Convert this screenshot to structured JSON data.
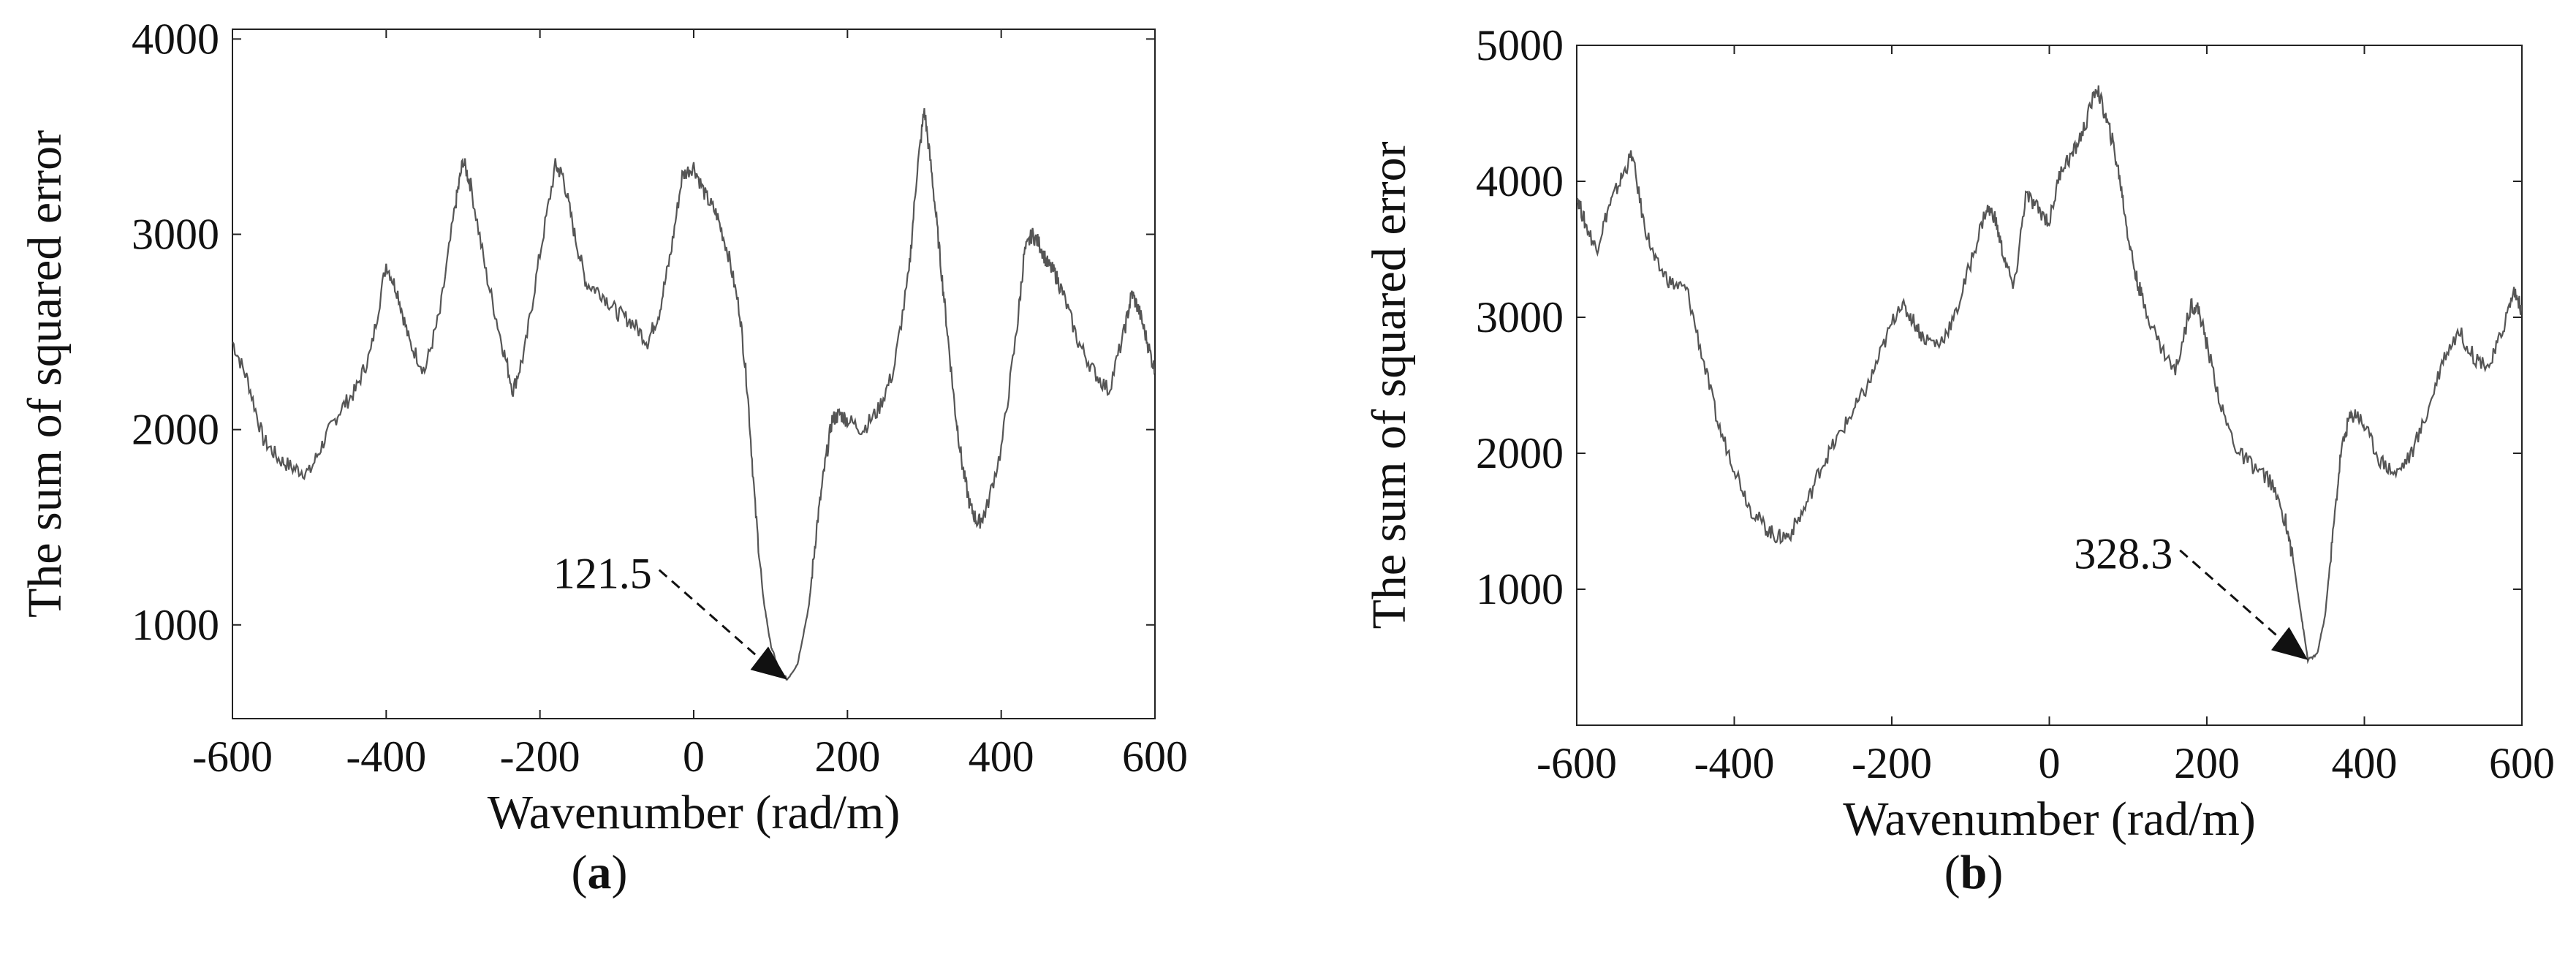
{
  "chart_data": [
    {
      "type": "line",
      "panel_label": {
        "open": "(",
        "letter": "a",
        "close": ")"
      },
      "xlabel": "Wavenumber (rad/m)",
      "ylabel": "The sum of squared error",
      "xlim": [
        -600,
        600
      ],
      "ylim": [
        520,
        4050
      ],
      "xticks": [
        -600,
        -400,
        -200,
        0,
        200,
        400,
        600
      ],
      "yticks": [
        1000,
        2000,
        3000,
        4000
      ],
      "grid": false,
      "line_color": "#555555",
      "annotation": {
        "text": "121.5",
        "x": 121.5,
        "y": 720
      },
      "x": [
        -600,
        -580,
        -560,
        -540,
        -520,
        -500,
        -480,
        -460,
        -440,
        -420,
        -400,
        -385,
        -370,
        -350,
        -330,
        -310,
        -300,
        -290,
        -270,
        -250,
        -235,
        -220,
        -200,
        -180,
        -170,
        -155,
        -140,
        -120,
        -100,
        -80,
        -60,
        -45,
        -30,
        -15,
        0,
        15,
        30,
        45,
        60,
        70,
        80,
        90,
        100,
        110,
        121.5,
        135,
        150,
        160,
        170,
        180,
        190,
        200,
        220,
        240,
        260,
        280,
        290,
        300,
        310,
        320,
        330,
        340,
        350,
        360,
        370,
        380,
        400,
        420,
        430,
        440,
        450,
        460,
        470,
        480,
        500,
        520,
        540,
        560,
        570,
        580,
        590,
        600
      ],
      "y": [
        2450,
        2250,
        1950,
        1850,
        1800,
        1780,
        1950,
        2100,
        2200,
        2400,
        2850,
        2700,
        2450,
        2300,
        2600,
        3150,
        3380,
        3250,
        2800,
        2450,
        2200,
        2400,
        2900,
        3350,
        3300,
        3000,
        2750,
        2700,
        2600,
        2550,
        2450,
        2600,
        2900,
        3300,
        3350,
        3200,
        3100,
        2900,
        2600,
        2200,
        1600,
        1150,
        900,
        780,
        720,
        800,
        1100,
        1500,
        1800,
        2050,
        2080,
        2050,
        2000,
        2100,
        2300,
        2800,
        3300,
        3640,
        3300,
        2900,
        2500,
        2100,
        1800,
        1600,
        1520,
        1580,
        1900,
        2500,
        2900,
        3000,
        2950,
        2850,
        2800,
        2700,
        2450,
        2300,
        2200,
        2500,
        2700,
        2600,
        2450,
        2300
      ]
    },
    {
      "type": "line",
      "panel_label": {
        "open": "(",
        "letter": "b",
        "close": ")"
      },
      "xlabel": "Wavenumber (rad/m)",
      "ylabel": "The sum of squared error",
      "xlim": [
        -600,
        600
      ],
      "ylim": [
        0,
        5000
      ],
      "xticks": [
        -600,
        -400,
        -200,
        0,
        200,
        400,
        600
      ],
      "yticks": [
        1000,
        2000,
        3000,
        4000,
        5000
      ],
      "grid": false,
      "line_color": "#555555",
      "annotation": {
        "text": "328.3",
        "x": 328.3,
        "y": 480
      },
      "x": [
        -600,
        -590,
        -575,
        -560,
        -545,
        -530,
        -515,
        -500,
        -480,
        -460,
        -440,
        -420,
        -400,
        -380,
        -360,
        -345,
        -330,
        -310,
        -290,
        -270,
        -250,
        -230,
        -210,
        -190,
        -175,
        -160,
        -140,
        -120,
        -100,
        -80,
        -70,
        -60,
        -45,
        -30,
        -15,
        0,
        15,
        30,
        45,
        60,
        70,
        80,
        90,
        100,
        110,
        120,
        140,
        160,
        180,
        190,
        200,
        220,
        240,
        260,
        280,
        300,
        310,
        320,
        328.3,
        340,
        350,
        360,
        370,
        380,
        390,
        400,
        420,
        440,
        460,
        480,
        500,
        520,
        540,
        560,
        575,
        590,
        600
      ],
      "y": [
        3900,
        3700,
        3500,
        3800,
        4000,
        4200,
        3700,
        3400,
        3250,
        3200,
        2700,
        2200,
        1900,
        1600,
        1450,
        1380,
        1400,
        1600,
        1900,
        2100,
        2300,
        2500,
        2800,
        3100,
        3000,
        2850,
        2800,
        3000,
        3400,
        3800,
        3750,
        3500,
        3200,
        3900,
        3800,
        3700,
        4100,
        4200,
        4400,
        4700,
        4500,
        4300,
        4000,
        3600,
        3300,
        3100,
        2800,
        2600,
        3100,
        3050,
        2800,
        2300,
        2000,
        1900,
        1800,
        1500,
        1200,
        800,
        480,
        520,
        800,
        1400,
        2000,
        2250,
        2300,
        2200,
        1950,
        1850,
        2000,
        2300,
        2700,
        2900,
        2700,
        2650,
        2900,
        3200,
        3050
      ]
    }
  ]
}
